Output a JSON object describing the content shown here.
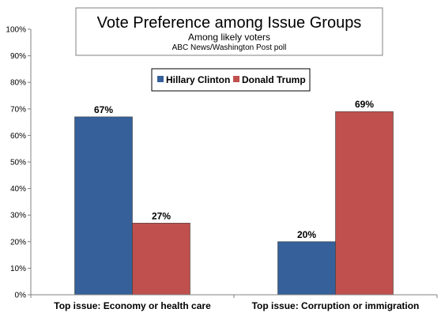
{
  "chart_data": {
    "type": "bar",
    "title": "Vote Preference among Issue Groups",
    "subtitle": "Among likely voters",
    "source": "ABC News/Washington  Post poll",
    "categories": [
      "Top issue: Economy or health care",
      "Top issue: Corruption or immigration"
    ],
    "series": [
      {
        "name": "Hillary Clinton",
        "values": [
          67,
          20
        ],
        "labels": [
          "67%",
          "20%"
        ],
        "color": "#35609a"
      },
      {
        "name": "Donald Trump",
        "values": [
          27,
          69
        ],
        "labels": [
          "27%",
          "69%"
        ],
        "color": "#c0504d"
      }
    ],
    "ylim": [
      0,
      100
    ],
    "yticks": [
      "0%",
      "10%",
      "20%",
      "30%",
      "40%",
      "50%",
      "60%",
      "70%",
      "80%",
      "90%",
      "100%"
    ],
    "grid": false,
    "legend_position": "top-center"
  }
}
